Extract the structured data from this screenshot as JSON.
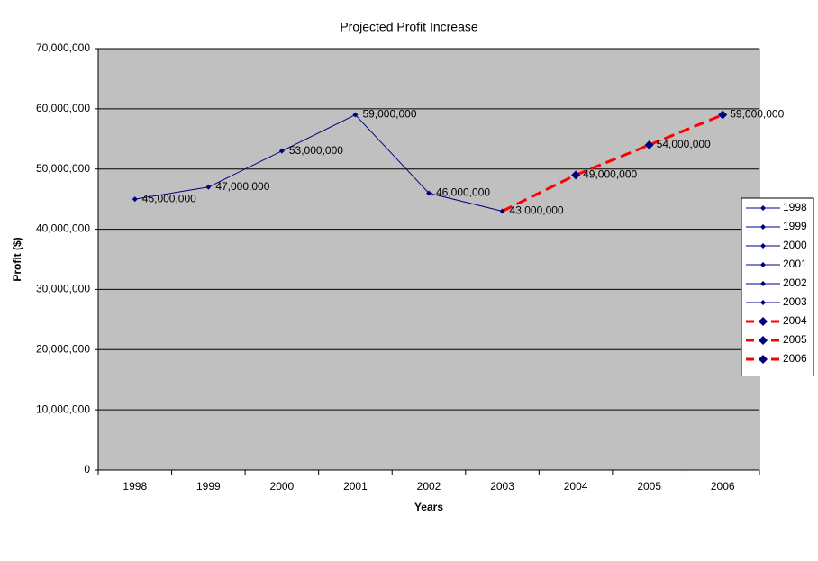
{
  "chart_data": {
    "type": "line",
    "title": "Projected Profit Increase",
    "x_label": "Years",
    "y_label": "Profit ($)",
    "categories": [
      "1998",
      "1999",
      "2000",
      "2001",
      "2002",
      "2003",
      "2004",
      "2005",
      "2006"
    ],
    "values": [
      45000000,
      47000000,
      53000000,
      59000000,
      46000000,
      43000000,
      49000000,
      54000000,
      59000000
    ],
    "value_labels": [
      "45,000,000",
      "47,000,000",
      "53,000,000",
      "59,000,000",
      "46,000,000",
      "43,000,000",
      "49,000,000",
      "54,000,000",
      "59,000,000"
    ],
    "point_colors": [
      "#000080",
      "#000080",
      "#000080",
      "#000080",
      "#000080",
      "#000080",
      "#ff0000",
      "#ff0000",
      "#ff0000"
    ],
    "point_dashed": [
      false,
      false,
      false,
      false,
      false,
      false,
      true,
      true,
      true
    ],
    "marker_color": "#000080",
    "ylim": [
      0,
      70000000
    ],
    "yticks": [
      0,
      {
        "value": 10000000,
        "label": "10,000,000"
      },
      {
        "value": 20000000,
        "label": "20,000,000"
      },
      {
        "value": 30000000,
        "label": "30,000,000"
      },
      {
        "value": 40000000,
        "label": "40,000,000"
      },
      {
        "value": 50000000,
        "label": "50,000,000"
      },
      {
        "value": 60000000,
        "label": "60,000,000"
      },
      {
        "value": 70000000,
        "label": "70,000,000"
      }
    ],
    "grid": true,
    "plot_background": "#c0c0c0",
    "legend": "right"
  }
}
